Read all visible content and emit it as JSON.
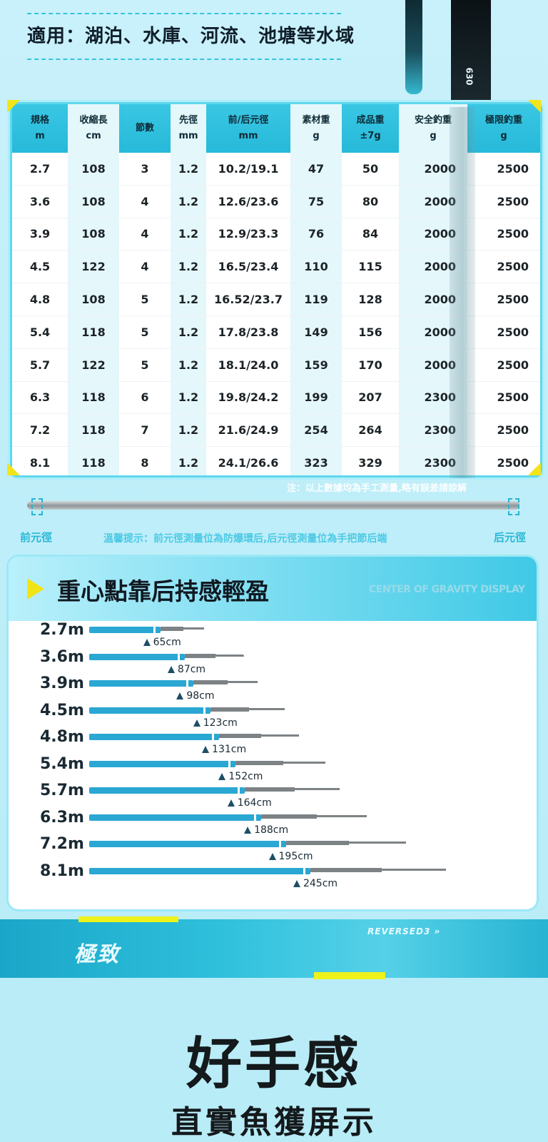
{
  "applicable": "適用：湖泊、水庫、河流、池塘等水域",
  "rod_label": "630",
  "table": {
    "headers": [
      {
        "l1": "規格",
        "l2": "m"
      },
      {
        "l1": "收縮長",
        "l2": "cm"
      },
      {
        "l1": "節數",
        "l2": ""
      },
      {
        "l1": "先徑",
        "l2": "mm"
      },
      {
        "l1": "前/后元徑",
        "l2": "mm"
      },
      {
        "l1": "素材重",
        "l2": "g"
      },
      {
        "l1": "成品重",
        "l2": "±7g"
      },
      {
        "l1": "安全釣重",
        "l2": "g"
      },
      {
        "l1": "極限釣重",
        "l2": "g"
      }
    ],
    "rows": [
      [
        "2.7",
        "108",
        "3",
        "1.2",
        "10.2/19.1",
        "47",
        "50",
        "2000",
        "2500"
      ],
      [
        "3.6",
        "108",
        "4",
        "1.2",
        "12.6/23.6",
        "75",
        "80",
        "2000",
        "2500"
      ],
      [
        "3.9",
        "108",
        "4",
        "1.2",
        "12.9/23.3",
        "76",
        "84",
        "2000",
        "2500"
      ],
      [
        "4.5",
        "122",
        "4",
        "1.2",
        "16.5/23.4",
        "110",
        "115",
        "2000",
        "2500"
      ],
      [
        "4.8",
        "108",
        "5",
        "1.2",
        "16.52/23.7",
        "119",
        "128",
        "2000",
        "2500"
      ],
      [
        "5.4",
        "118",
        "5",
        "1.2",
        "17.8/23.8",
        "149",
        "156",
        "2000",
        "2500"
      ],
      [
        "5.7",
        "122",
        "5",
        "1.2",
        "18.1/24.0",
        "159",
        "170",
        "2000",
        "2500"
      ],
      [
        "6.3",
        "118",
        "6",
        "1.2",
        "19.8/24.2",
        "199",
        "207",
        "2300",
        "2500"
      ],
      [
        "7.2",
        "118",
        "7",
        "1.2",
        "21.6/24.9",
        "254",
        "264",
        "2300",
        "2500"
      ],
      [
        "8.1",
        "118",
        "8",
        "1.2",
        "24.1/26.6",
        "323",
        "329",
        "2300",
        "2500"
      ]
    ]
  },
  "note": "注：以上數據均為手工測量,略有誤差請諒解",
  "rod_diagram": {
    "left_label": "前元徑",
    "right_label": "后元徑",
    "tip": "溫馨提示：前元徑測量位為防爆環后,后元徑測量位為手把節后端"
  },
  "gravity": {
    "title": "重心點靠后持感輕盈",
    "subtitle": "CENTER OF GRAVITY DISPLAY",
    "rows": [
      {
        "label": "2.7m",
        "length_m": 2.7,
        "cg_cm": 65,
        "value": "65cm"
      },
      {
        "label": "3.6m",
        "length_m": 3.6,
        "cg_cm": 87,
        "value": "87cm"
      },
      {
        "label": "3.9m",
        "length_m": 3.9,
        "cg_cm": 98,
        "value": "98cm"
      },
      {
        "label": "4.5m",
        "length_m": 4.5,
        "cg_cm": 123,
        "value": "123cm"
      },
      {
        "label": "4.8m",
        "length_m": 4.8,
        "cg_cm": 131,
        "value": "131cm"
      },
      {
        "label": "5.4m",
        "length_m": 5.4,
        "cg_cm": 152,
        "value": "152cm"
      },
      {
        "label": "5.7m",
        "length_m": 5.7,
        "cg_cm": 164,
        "value": "164cm"
      },
      {
        "label": "6.3m",
        "length_m": 6.3,
        "cg_cm": 188,
        "value": "188cm"
      },
      {
        "label": "7.2m",
        "length_m": 7.2,
        "cg_cm": 195,
        "value": "195cm"
      },
      {
        "label": "8.1m",
        "length_m": 8.1,
        "cg_cm": 245,
        "value": "245cm"
      }
    ]
  },
  "band": {
    "logo": "極致",
    "text": "REVERSED3 »"
  },
  "feature_title": "好手感",
  "feature_subtitle": "直實魚獲屏示",
  "colors": {
    "accent": "#2aa7d3",
    "highlight": "#f1e414"
  }
}
